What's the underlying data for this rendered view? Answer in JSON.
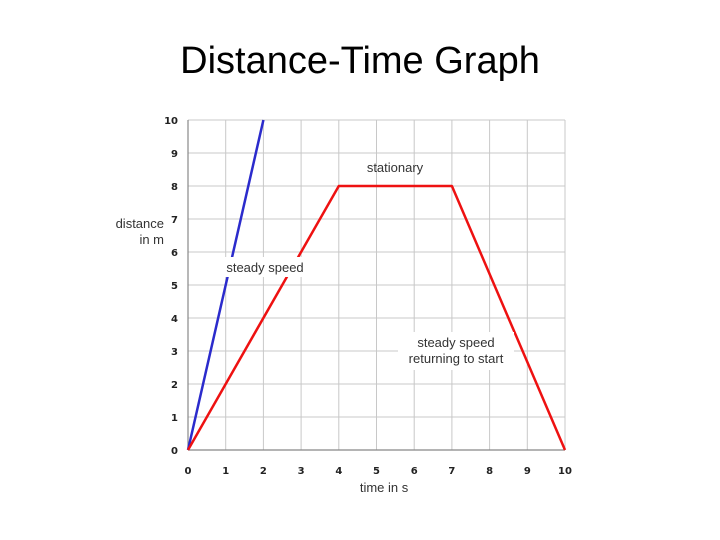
{
  "slide": {
    "title": "Distance-Time Graph"
  },
  "colors": {
    "grid": "#c8c8c8",
    "blue_series": "#2b2bcc",
    "red_series": "#ee1111",
    "axis": "#888888"
  },
  "chart_data": {
    "type": "line",
    "title": "",
    "xlabel": "time in s",
    "ylabel_lines": [
      "distance",
      "in m"
    ],
    "xlim": [
      0,
      10
    ],
    "ylim": [
      0,
      10
    ],
    "xticks": [
      0,
      1,
      2,
      3,
      4,
      5,
      6,
      7,
      8,
      9,
      10
    ],
    "yticks": [
      0,
      1,
      2,
      3,
      4,
      5,
      6,
      7,
      8,
      9,
      10
    ],
    "grid": true,
    "series": [
      {
        "color": "#2b2bcc",
        "x": [
          0,
          2
        ],
        "y": [
          0,
          10
        ]
      },
      {
        "color": "#ee1111",
        "x": [
          0,
          4,
          7,
          10
        ],
        "y": [
          0,
          8,
          8,
          0
        ]
      }
    ],
    "annotations": [
      {
        "lines": [
          "stationary"
        ]
      },
      {
        "lines": [
          "steady speed"
        ]
      },
      {
        "lines": [
          "steady speed",
          "returning to start"
        ]
      }
    ]
  }
}
